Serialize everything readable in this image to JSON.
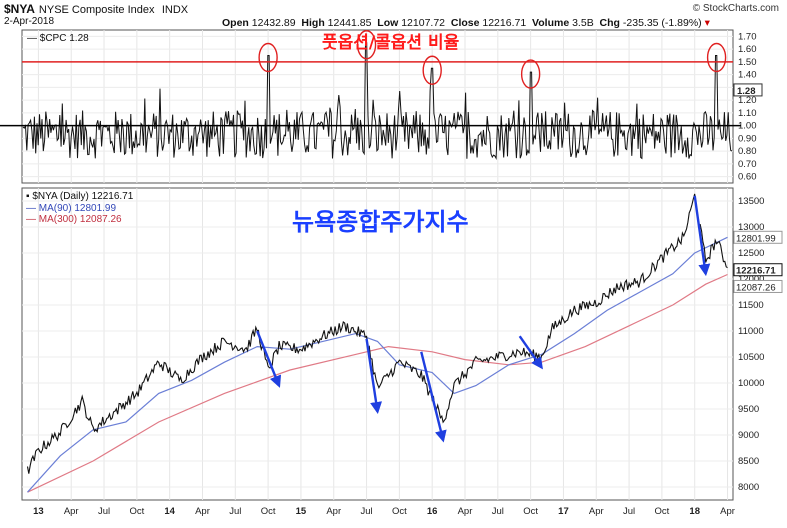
{
  "header": {
    "symbol": "$NYA",
    "name": "NYSE Composite Index",
    "exchange": "INDX",
    "date": "2-Apr-2018",
    "open_label": "Open",
    "open": "12432.89",
    "high_label": "High",
    "high": "12441.85",
    "low_label": "Low",
    "low": "12107.72",
    "close_label": "Close",
    "close": "12216.71",
    "volume_label": "Volume",
    "volume": "3.5B",
    "chg_label": "Chg",
    "chg": "-235.35 (-1.89%)",
    "credit": "© StockCharts.com"
  },
  "colors": {
    "price": "#111111",
    "ma90": "#6b7fd6",
    "ma300": "#e07a86",
    "redline": "#e02020",
    "arrow": "#1f3fe0",
    "korean_red": "#ff1a1a",
    "korean_blue": "#1a3fff"
  },
  "chart_data": [
    {
      "type": "line",
      "legend": "$CPC 1.28",
      "annotation": "풋옵션/콜옵션 비율",
      "ylim": [
        0.55,
        1.75
      ],
      "yticks": [
        "1.70",
        "1.60",
        "1.50",
        "1.40",
        "1.30",
        "1.20",
        "1.10",
        "1.00",
        "0.90",
        "0.80",
        "0.70",
        "0.60"
      ],
      "reference_lines": [
        1.5,
        1.0
      ],
      "last_value": "1.28",
      "x_start": "2012-12",
      "x_end": "2018-04",
      "highlight_peaks": [
        {
          "date": "2014-10",
          "value": 1.55
        },
        {
          "date": "2015-07",
          "value": 1.65
        },
        {
          "date": "2016-01",
          "value": 1.45
        },
        {
          "date": "2016-10",
          "value": 1.42
        },
        {
          "date": "2018-03",
          "value": 1.55
        }
      ]
    },
    {
      "type": "line",
      "legend": "$NYA (Daily) 12216.71",
      "annotation": "뉴욕종합주가지수",
      "ylim": [
        7750,
        13750
      ],
      "yticks": [
        "13500",
        "13000",
        "12500",
        "12000",
        "11500",
        "11000",
        "10500",
        "10000",
        "9500",
        "9000",
        "8500",
        "8000"
      ],
      "last_labels": [
        "12801.99",
        "12216.71",
        "12087.26"
      ],
      "series": [
        {
          "name": "$NYA (Daily) 12216.71",
          "points": [
            [
              "2012-12",
              8300
            ],
            [
              "2013-01",
              8700
            ],
            [
              "2013-03",
              9050
            ],
            [
              "2013-05",
              9650
            ],
            [
              "2013-06",
              9100
            ],
            [
              "2013-08",
              9450
            ],
            [
              "2013-10",
              9800
            ],
            [
              "2013-12",
              10400
            ],
            [
              "2014-02",
              10050
            ],
            [
              "2014-04",
              10500
            ],
            [
              "2014-06",
              10800
            ],
            [
              "2014-08",
              10650
            ],
            [
              "2014-09",
              11050
            ],
            [
              "2014-10",
              10250
            ],
            [
              "2014-11",
              10700
            ],
            [
              "2015-01",
              10650
            ],
            [
              "2015-03",
              10900
            ],
            [
              "2015-05",
              11100
            ],
            [
              "2015-07",
              10900
            ],
            [
              "2015-08",
              9900
            ],
            [
              "2015-10",
              10400
            ],
            [
              "2015-12",
              10150
            ],
            [
              "2016-02",
              9250
            ],
            [
              "2016-03",
              9950
            ],
            [
              "2016-05",
              10400
            ],
            [
              "2016-07",
              10500
            ],
            [
              "2016-09",
              10600
            ],
            [
              "2016-11",
              10500
            ],
            [
              "2016-12",
              11050
            ],
            [
              "2017-02",
              11400
            ],
            [
              "2017-04",
              11550
            ],
            [
              "2017-06",
              11850
            ],
            [
              "2017-08",
              11950
            ],
            [
              "2017-10",
              12400
            ],
            [
              "2017-12",
              12800
            ],
            [
              "2018-01",
              13600
            ],
            [
              "2018-02",
              12350
            ],
            [
              "2018-03",
              12750
            ],
            [
              "2018-04",
              12216.71
            ]
          ]
        },
        {
          "name": "MA(90) 12801.99",
          "points": [
            [
              "2012-12",
              7900
            ],
            [
              "2013-03",
              8600
            ],
            [
              "2013-06",
              9100
            ],
            [
              "2013-09",
              9250
            ],
            [
              "2013-12",
              9800
            ],
            [
              "2014-03",
              10050
            ],
            [
              "2014-06",
              10400
            ],
            [
              "2014-09",
              10700
            ],
            [
              "2014-12",
              10650
            ],
            [
              "2015-03",
              10800
            ],
            [
              "2015-06",
              10950
            ],
            [
              "2015-08",
              10800
            ],
            [
              "2015-10",
              10350
            ],
            [
              "2016-01",
              10200
            ],
            [
              "2016-03",
              9800
            ],
            [
              "2016-05",
              9950
            ],
            [
              "2016-08",
              10350
            ],
            [
              "2016-11",
              10550
            ],
            [
              "2017-02",
              10950
            ],
            [
              "2017-05",
              11400
            ],
            [
              "2017-08",
              11750
            ],
            [
              "2017-11",
              12100
            ],
            [
              "2018-01",
              12500
            ],
            [
              "2018-04",
              12801.99
            ]
          ]
        },
        {
          "name": "MA(300) 12087.26",
          "points": [
            [
              "2012-12",
              7900
            ],
            [
              "2013-06",
              8500
            ],
            [
              "2013-12",
              9250
            ],
            [
              "2014-06",
              9800
            ],
            [
              "2014-12",
              10250
            ],
            [
              "2015-06",
              10550
            ],
            [
              "2015-09",
              10700
            ],
            [
              "2016-01",
              10600
            ],
            [
              "2016-04",
              10450
            ],
            [
              "2016-08",
              10350
            ],
            [
              "2016-11",
              10400
            ],
            [
              "2017-03",
              10700
            ],
            [
              "2017-07",
              11100
            ],
            [
              "2017-11",
              11500
            ],
            [
              "2018-02",
              11900
            ],
            [
              "2018-04",
              12087.26
            ]
          ]
        }
      ],
      "down_arrows": [
        {
          "from": [
            "2014-09",
            11000
          ],
          "to": [
            "2014-11",
            9950
          ]
        },
        {
          "from": [
            "2015-07",
            10850
          ],
          "to": [
            "2015-08",
            9450
          ]
        },
        {
          "from": [
            "2015-12",
            10600
          ],
          "to": [
            "2016-02",
            8900
          ]
        },
        {
          "from": [
            "2016-09",
            10900
          ],
          "to": [
            "2016-11",
            10300
          ]
        },
        {
          "from": [
            "2018-01",
            13600
          ],
          "to": [
            "2018-02",
            12100
          ]
        }
      ]
    }
  ],
  "xaxis": {
    "labels": [
      {
        "date": "2013-01",
        "text": "13"
      },
      {
        "date": "2013-04",
        "text": "Apr"
      },
      {
        "date": "2013-07",
        "text": "Jul"
      },
      {
        "date": "2013-10",
        "text": "Oct"
      },
      {
        "date": "2014-01",
        "text": "14"
      },
      {
        "date": "2014-04",
        "text": "Apr"
      },
      {
        "date": "2014-07",
        "text": "Jul"
      },
      {
        "date": "2014-10",
        "text": "Oct"
      },
      {
        "date": "2015-01",
        "text": "15"
      },
      {
        "date": "2015-04",
        "text": "Apr"
      },
      {
        "date": "2015-07",
        "text": "Jul"
      },
      {
        "date": "2015-10",
        "text": "Oct"
      },
      {
        "date": "2016-01",
        "text": "16"
      },
      {
        "date": "2016-04",
        "text": "Apr"
      },
      {
        "date": "2016-07",
        "text": "Jul"
      },
      {
        "date": "2016-10",
        "text": "Oct"
      },
      {
        "date": "2017-01",
        "text": "17"
      },
      {
        "date": "2017-04",
        "text": "Apr"
      },
      {
        "date": "2017-07",
        "text": "Jul"
      },
      {
        "date": "2017-10",
        "text": "Oct"
      },
      {
        "date": "2018-01",
        "text": "18"
      },
      {
        "date": "2018-04",
        "text": "Apr"
      }
    ]
  }
}
